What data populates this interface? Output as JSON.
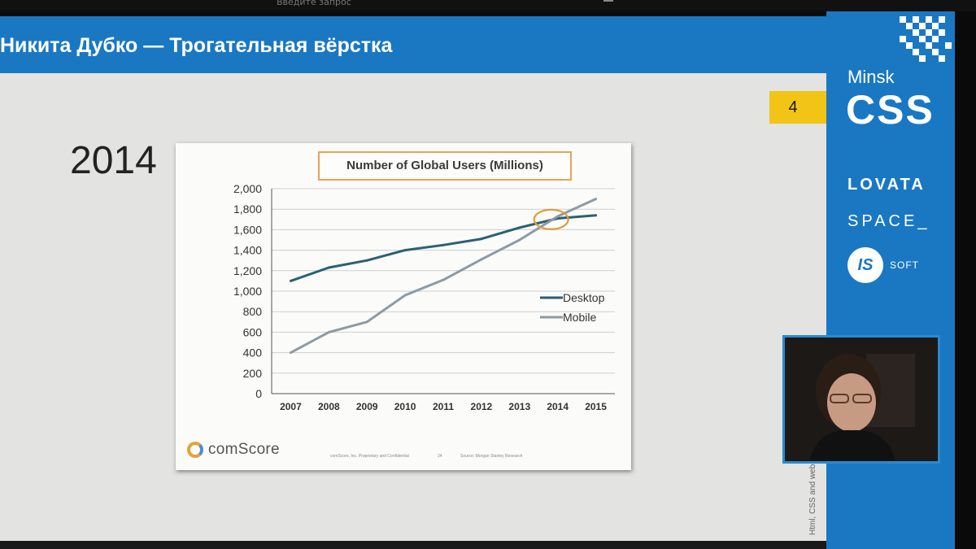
{
  "top_bar": {
    "search_hint": "Введите запрос"
  },
  "slide": {
    "title": "Никита Дубко — Трогательная вёрстка",
    "page_number": "4",
    "heading": "2014"
  },
  "chart_card": {
    "footer_logo": "comScore",
    "footer_note_left": "comScore, Inc. Proprietary and Confidential",
    "footer_note_page": "24",
    "footer_note_source": "Source: Morgan Stanley Research"
  },
  "sidebar": {
    "minsk": "Minsk",
    "css": "CSS",
    "sponsor_lovata": "LOVATA",
    "sponsor_space": "SPACE_",
    "sponsor_is": "IS",
    "sponsor_soft": "SOFT"
  },
  "side_link": "Html, CSS and websites",
  "chart_data": {
    "type": "line",
    "title": "Number of Global Users (Millions)",
    "x": [
      "2007",
      "2008",
      "2009",
      "2010",
      "2011",
      "2012",
      "2013",
      "2014",
      "2015"
    ],
    "y_ticks": [
      "0",
      "200",
      "400",
      "600",
      "800",
      "1,000",
      "1,200",
      "1,400",
      "1,600",
      "1,800",
      "2,000"
    ],
    "ylim": [
      0,
      2000
    ],
    "grid": true,
    "legend_position": "right",
    "series": [
      {
        "name": "Desktop",
        "color": "#2b5f73",
        "values": [
          1100,
          1230,
          1300,
          1400,
          1450,
          1510,
          1620,
          1710,
          1740
        ]
      },
      {
        "name": "Mobile",
        "color": "#8c9ba4",
        "values": [
          400,
          600,
          700,
          960,
          1110,
          1310,
          1500,
          1730,
          1900
        ]
      }
    ],
    "annotation": {
      "type": "ellipse",
      "color": "#e09a3a",
      "at_x": "2014",
      "at_y": 1700
    }
  }
}
